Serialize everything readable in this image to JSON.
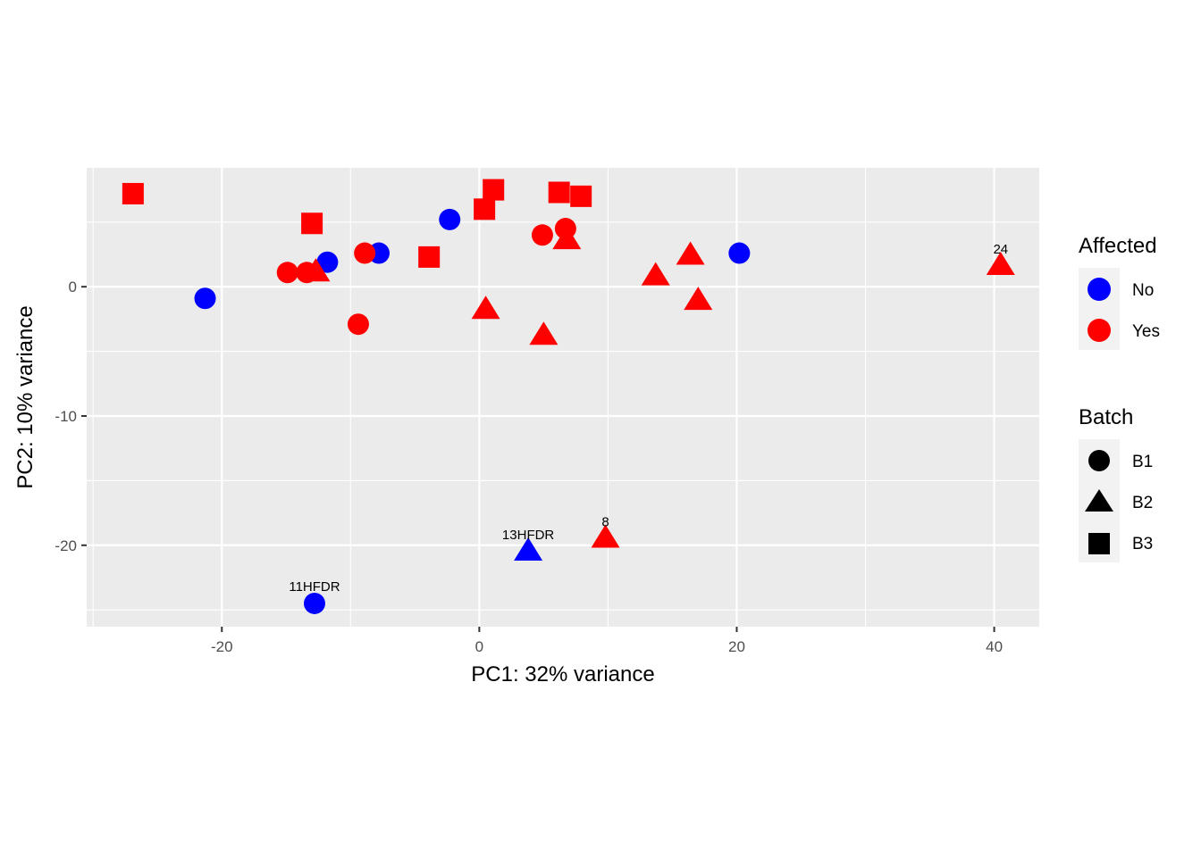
{
  "chart_data": {
    "type": "scatter",
    "xlabel": "PC1: 32% variance",
    "ylabel": "PC2: 10% variance",
    "xlim": [
      -30.5,
      43.5
    ],
    "ylim": [
      -26.3,
      9.2
    ],
    "x_ticks": [
      -20,
      0,
      20,
      40
    ],
    "y_ticks": [
      0,
      -10,
      -20
    ],
    "x_tick_labels": [
      "-20",
      "0",
      "20",
      "40"
    ],
    "y_tick_labels": [
      "0",
      "-10",
      "-20"
    ],
    "grid": true,
    "legend_position": "right",
    "color_legend": {
      "title": "Affected",
      "entries": [
        {
          "label": "No",
          "color": "#0000ff"
        },
        {
          "label": "Yes",
          "color": "#ff0000"
        }
      ]
    },
    "shape_legend": {
      "title": "Batch",
      "entries": [
        {
          "label": "B1",
          "shape": "circle"
        },
        {
          "label": "B2",
          "shape": "triangle"
        },
        {
          "label": "B3",
          "shape": "square"
        }
      ]
    },
    "points": [
      {
        "x": -21.3,
        "y": -0.9,
        "affected": "No",
        "batch": "B1"
      },
      {
        "x": -11.8,
        "y": 1.9,
        "affected": "No",
        "batch": "B1"
      },
      {
        "x": -7.8,
        "y": 2.6,
        "affected": "No",
        "batch": "B1"
      },
      {
        "x": -2.3,
        "y": 5.2,
        "affected": "No",
        "batch": "B1"
      },
      {
        "x": 20.2,
        "y": 2.6,
        "affected": "No",
        "batch": "B1"
      },
      {
        "x": -12.8,
        "y": -24.5,
        "affected": "No",
        "batch": "B1",
        "label": "11HFDR"
      },
      {
        "x": 3.8,
        "y": -20.5,
        "affected": "No",
        "batch": "B2",
        "label": "13HFDR"
      },
      {
        "x": -14.9,
        "y": 1.1,
        "affected": "Yes",
        "batch": "B1"
      },
      {
        "x": -13.4,
        "y": 1.1,
        "affected": "Yes",
        "batch": "B1"
      },
      {
        "x": -8.9,
        "y": 2.6,
        "affected": "Yes",
        "batch": "B1"
      },
      {
        "x": -9.4,
        "y": -2.9,
        "affected": "Yes",
        "batch": "B1"
      },
      {
        "x": 4.9,
        "y": 4.0,
        "affected": "Yes",
        "batch": "B1"
      },
      {
        "x": 6.7,
        "y": 4.5,
        "affected": "Yes",
        "batch": "B1"
      },
      {
        "x": -12.7,
        "y": 1.1,
        "affected": "Yes",
        "batch": "B2"
      },
      {
        "x": 0.5,
        "y": -1.8,
        "affected": "Yes",
        "batch": "B2"
      },
      {
        "x": 5.0,
        "y": -3.8,
        "affected": "Yes",
        "batch": "B2"
      },
      {
        "x": 6.8,
        "y": 3.6,
        "affected": "Yes",
        "batch": "B2"
      },
      {
        "x": 13.7,
        "y": 0.8,
        "affected": "Yes",
        "batch": "B2"
      },
      {
        "x": 16.4,
        "y": 2.4,
        "affected": "Yes",
        "batch": "B2"
      },
      {
        "x": 17.0,
        "y": -1.1,
        "affected": "Yes",
        "batch": "B2"
      },
      {
        "x": 40.5,
        "y": 1.6,
        "affected": "Yes",
        "batch": "B2",
        "label": "24"
      },
      {
        "x": 9.8,
        "y": -19.5,
        "affected": "Yes",
        "batch": "B2",
        "label": "8"
      },
      {
        "x": -26.9,
        "y": 7.2,
        "affected": "Yes",
        "batch": "B3"
      },
      {
        "x": -13.0,
        "y": 4.9,
        "affected": "Yes",
        "batch": "B3"
      },
      {
        "x": -3.9,
        "y": 2.3,
        "affected": "Yes",
        "batch": "B3"
      },
      {
        "x": 0.4,
        "y": 6.0,
        "affected": "Yes",
        "batch": "B3"
      },
      {
        "x": 1.1,
        "y": 7.5,
        "affected": "Yes",
        "batch": "B3"
      },
      {
        "x": 6.2,
        "y": 7.3,
        "affected": "Yes",
        "batch": "B3"
      },
      {
        "x": 7.9,
        "y": 7.0,
        "affected": "Yes",
        "batch": "B3"
      }
    ]
  }
}
